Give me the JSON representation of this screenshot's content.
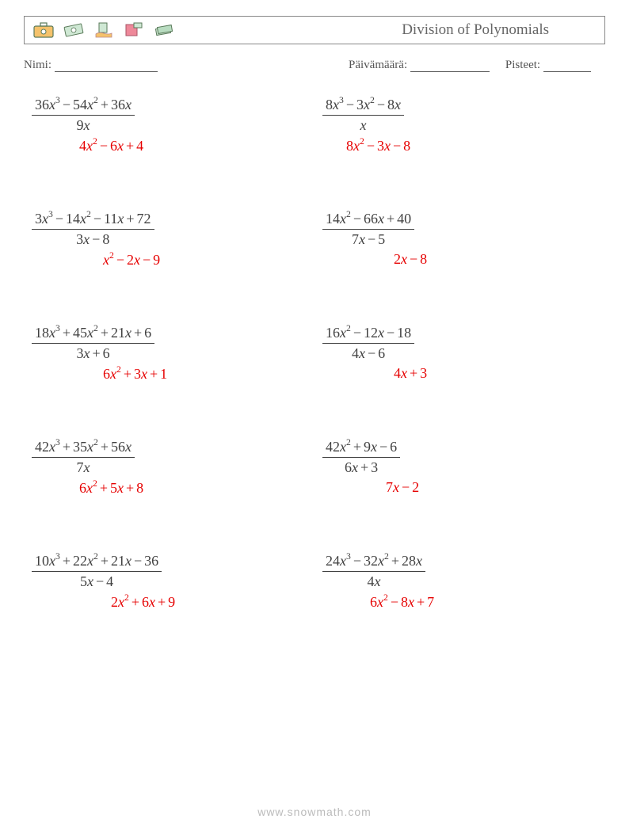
{
  "header": {
    "title": "Division of Polynomials"
  },
  "info": {
    "name_label": "Nimi:",
    "name_blank_width": 130,
    "date_label": "Päivämäärä:",
    "date_blank_width": 100,
    "score_label": "Pisteet:",
    "score_blank_width": 60
  },
  "colors": {
    "text": "#404040",
    "answer": "#e60000",
    "border": "#888888",
    "footer": "#bbbbbb"
  },
  "problems": [
    {
      "numerator": "36x^3 − 54x^2 + 36x",
      "denominator": "9x",
      "answer": "4x^2 − 6x + 4",
      "answer_indent": 60
    },
    {
      "numerator": "8x^3 − 3x^2 − 8x",
      "denominator": "x",
      "answer": "8x^2 − 3x − 8",
      "answer_indent": 30
    },
    {
      "numerator": "3x^3 − 14x^2 − 11x + 72",
      "denominator": "3x − 8",
      "answer": "x^2 − 2x − 9",
      "answer_indent": 90
    },
    {
      "numerator": "14x^2 − 66x + 40",
      "denominator": "7x − 5",
      "answer": "2x − 8",
      "answer_indent": 90
    },
    {
      "numerator": "18x^3 + 45x^2 + 21x + 6",
      "denominator": "3x + 6",
      "answer": "6x^2 + 3x + 1",
      "answer_indent": 90
    },
    {
      "numerator": "16x^2 − 12x − 18",
      "denominator": "4x − 6",
      "answer": "4x + 3",
      "answer_indent": 90
    },
    {
      "numerator": "42x^3 + 35x^2 + 56x",
      "denominator": "7x",
      "answer": "6x^2 + 5x + 8",
      "answer_indent": 60
    },
    {
      "numerator": "42x^2 + 9x − 6",
      "denominator": "6x + 3",
      "answer": "7x − 2",
      "answer_indent": 80
    },
    {
      "numerator": "10x^3 + 22x^2 + 21x − 36",
      "denominator": "5x − 4",
      "answer": "2x^2 + 6x + 9",
      "answer_indent": 100
    },
    {
      "numerator": "24x^3 − 32x^2 + 28x",
      "denominator": "4x",
      "answer": "6x^2 − 8x + 7",
      "answer_indent": 60
    }
  ],
  "footer": "www.snowmath.com"
}
